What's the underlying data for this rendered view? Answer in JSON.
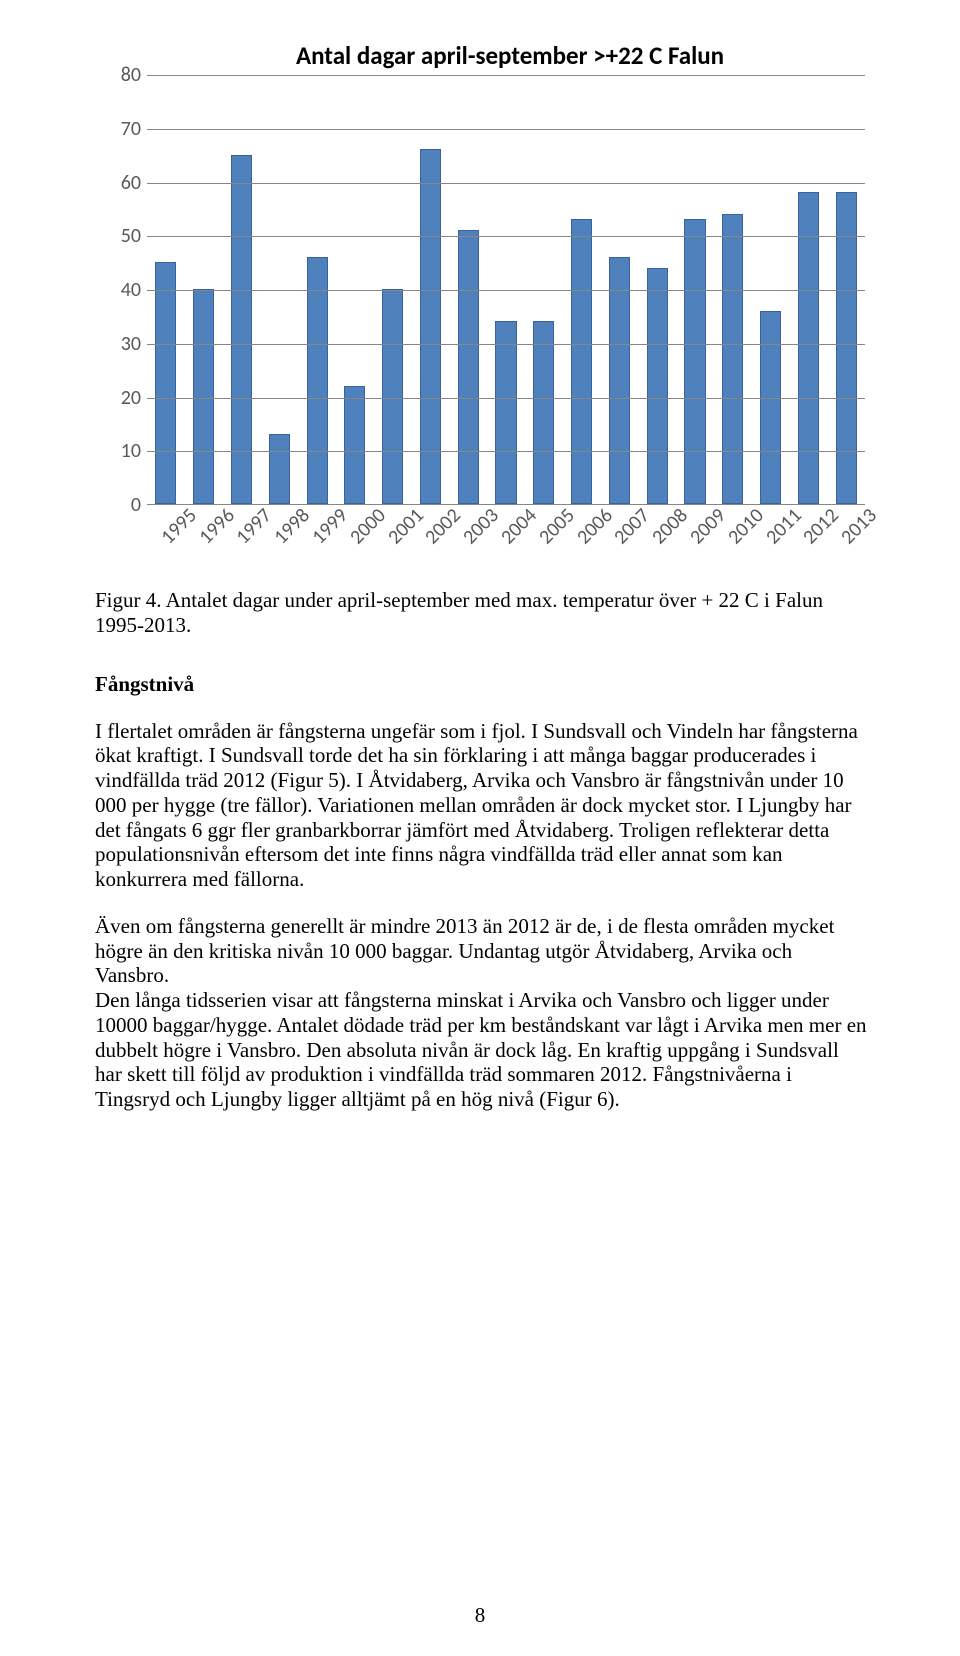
{
  "chart": {
    "type": "bar",
    "title": "Antal dagar april-september >+22 C Falun",
    "title_fontsize": 25,
    "title_weight": "bold",
    "categories": [
      "1995",
      "1996",
      "1997",
      "1998",
      "1999",
      "2000",
      "2001",
      "2002",
      "2003",
      "2004",
      "2005",
      "2006",
      "2007",
      "2008",
      "2009",
      "2010",
      "2011",
      "2012",
      "2013"
    ],
    "values": [
      45,
      40,
      65,
      13,
      46,
      22,
      40,
      66,
      51,
      34,
      34,
      53,
      46,
      44,
      53,
      54,
      36,
      58,
      58
    ],
    "bar_color": "#4f81bd",
    "bar_border_color": "#3a60a0",
    "bar_width": 0.56,
    "ylim": [
      0,
      80
    ],
    "ytick_step": 10,
    "yticks": [
      0,
      10,
      20,
      30,
      40,
      50,
      60,
      70,
      80
    ],
    "grid_color": "#878787",
    "background_color": "#ffffff",
    "axis_label_color": "#595959",
    "axis_fontsize": 20,
    "x_label_rotation": -45
  },
  "caption": "Figur 4. Antalet dagar under april-september med max. temperatur över + 22 C i Falun 1995-2013.",
  "section_heading": "Fångstnivå",
  "para1": "I flertalet områden är fångsterna ungefär som i fjol. I Sundsvall och Vindeln har fångsterna ökat kraftigt. I Sundsvall torde det ha sin förklaring i att många baggar producerades i vindfällda träd 2012 (Figur 5). I Åtvidaberg, Arvika och Vansbro är fångstnivån under 10 000 per hygge (tre fällor). Variationen mellan områden är dock mycket stor. I Ljungby har det fångats 6 ggr fler granbarkborrar jämfört med Åtvidaberg. Troligen reflekterar detta populationsnivån eftersom det inte finns några vindfällda träd eller annat som kan konkurrera med fällorna.",
  "para2": "Även om fångsterna generellt är mindre 2013 än 2012 är de, i de flesta områden mycket högre än den kritiska nivån 10 000 baggar. Undantag utgör Åtvidaberg, Arvika och Vansbro.",
  "para3": "Den långa tidsserien visar att fångsterna minskat i Arvika och Vansbro och ligger under 10000 baggar/hygge. Antalet dödade träd per km beståndskant var lågt i Arvika men mer en dubbelt högre i Vansbro. Den absoluta nivån är dock låg. En kraftig uppgång i Sundsvall har skett till följd av produktion i vindfällda träd sommaren 2012. Fångstnivåerna i Tingsryd och Ljungby ligger alltjämt på en hög nivå (Figur 6).",
  "page_number": "8"
}
